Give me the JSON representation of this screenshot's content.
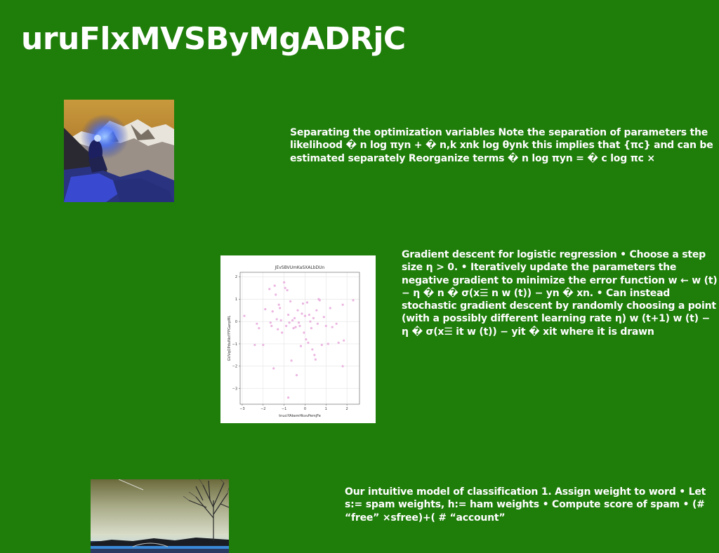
{
  "page": {
    "title": "uruFlxMVSByMgADRjC",
    "background": "#1f7d0a"
  },
  "paragraphs": [
    "Separating the optimization variables Note the separation of parameters the likelihood � n log πyn + � n,k xnk log θynk this implies that {πc} and can be estimated separately Reorganize terms � n log πyn = � c log πc ×",
    "Gradient descent for logistic regression • Choose a step size η > 0. • Iteratively update the parameters the negative gradient to minimize the error function w ← w (t) − η � n � σ(x☰ n w (t)) − yn � xn. • Can instead stochastic gradient descent by randomly choosing a point (with a possibly different learning rate η) w (t+1) w (t) − η � σ(x☰ it w (t)) − yit � xit where it is drawn",
    "Our intuitive model of classification 1. Assign weight to word • Let s:= spam weights, h:= ham weights • Compute score of spam • (# “free” ×sfree)+( # “account”"
  ],
  "images": {
    "mountain": "photo-mountain-climber",
    "lake": "photo-lake-trees"
  },
  "chart_data": {
    "type": "scatter",
    "title": "JEvSBVUmKaSXALbDUn",
    "xlabel": "tnuciYAkemHkxvPemjFe",
    "ylabel": "GVVqOPdulNoYFPGanpML",
    "xlim": [
      -3.1,
      2.6
    ],
    "ylim": [
      -3.7,
      2.2
    ],
    "xticks": [
      -3,
      -2,
      -1,
      0,
      1,
      2
    ],
    "yticks": [
      2,
      1,
      0,
      -1,
      -2,
      -3
    ],
    "grid": true,
    "point_color": "#e8a8dc",
    "points": [
      [
        -2.9,
        0.25
      ],
      [
        -2.4,
        -1.05
      ],
      [
        -2.3,
        -0.1
      ],
      [
        -2.2,
        -0.3
      ],
      [
        -2.0,
        -1.05
      ],
      [
        -1.9,
        0.55
      ],
      [
        -1.7,
        1.45
      ],
      [
        -1.65,
        -0.05
      ],
      [
        -1.6,
        -0.2
      ],
      [
        -1.55,
        0.45
      ],
      [
        -1.5,
        -2.1
      ],
      [
        -1.45,
        1.6
      ],
      [
        -1.4,
        1.2
      ],
      [
        -1.35,
        0.1
      ],
      [
        -1.3,
        -0.35
      ],
      [
        -1.25,
        0.75
      ],
      [
        -1.2,
        0.6
      ],
      [
        -1.15,
        0.05
      ],
      [
        -1.1,
        -0.5
      ],
      [
        -1.0,
        1.75
      ],
      [
        -0.95,
        1.5
      ],
      [
        -0.9,
        -0.2
      ],
      [
        -0.85,
        1.4
      ],
      [
        -0.8,
        0.3
      ],
      [
        -0.75,
        -0.05
      ],
      [
        -0.7,
        0.9
      ],
      [
        -0.65,
        -1.75
      ],
      [
        -0.6,
        0.05
      ],
      [
        -0.55,
        -0.3
      ],
      [
        -0.5,
        0.15
      ],
      [
        -0.45,
        -0.25
      ],
      [
        -0.4,
        -2.4
      ],
      [
        -0.35,
        0.5
      ],
      [
        -0.3,
        -0.05
      ],
      [
        -0.25,
        -0.2
      ],
      [
        -0.2,
        -1.1
      ],
      [
        -0.15,
        0.35
      ],
      [
        -0.1,
        0.8
      ],
      [
        -0.05,
        -0.5
      ],
      [
        0.0,
        0.25
      ],
      [
        0.05,
        -0.8
      ],
      [
        0.1,
        0.85
      ],
      [
        0.15,
        -0.95
      ],
      [
        0.2,
        0.3
      ],
      [
        0.25,
        0.0
      ],
      [
        0.3,
        -0.3
      ],
      [
        0.35,
        -1.25
      ],
      [
        0.4,
        0.15
      ],
      [
        0.45,
        -1.5
      ],
      [
        0.5,
        -1.7
      ],
      [
        0.55,
        0.5
      ],
      [
        0.6,
        -0.1
      ],
      [
        0.65,
        1.0
      ],
      [
        0.7,
        0.95
      ],
      [
        0.8,
        -1.05
      ],
      [
        0.9,
        0.2
      ],
      [
        1.0,
        -0.2
      ],
      [
        1.1,
        -1.0
      ],
      [
        1.2,
        0.6
      ],
      [
        1.3,
        -0.25
      ],
      [
        1.5,
        -0.1
      ],
      [
        1.6,
        -0.95
      ],
      [
        1.8,
        0.75
      ],
      [
        1.85,
        -0.85
      ],
      [
        2.3,
        0.95
      ],
      [
        1.8,
        -2.0
      ],
      [
        -0.8,
        -3.4
      ]
    ]
  }
}
